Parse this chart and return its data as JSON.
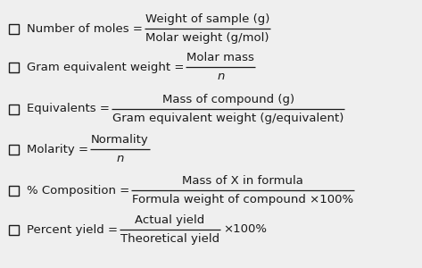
{
  "background_color": "#efefef",
  "text_color": "#1a1a1a",
  "box_color": "#1a1a1a",
  "font_size": 9.5,
  "fig_width": 4.73,
  "fig_height": 3.0,
  "dpi": 100,
  "formulas": [
    {
      "row": 0,
      "label": "Number of moles =",
      "numerator": "Weight of sample (g)",
      "denominator": "Molar weight (g/mol)",
      "denom_italic": false,
      "num_italic": false,
      "suffix": null
    },
    {
      "row": 1,
      "label": "Gram equivalent weight =",
      "numerator": "Molar mass",
      "denominator": "n",
      "denom_italic": true,
      "num_italic": false,
      "suffix": null
    },
    {
      "row": 2,
      "label": "Equivalents =",
      "numerator": "Mass of compound (g)",
      "denominator": "Gram equivalent weight (g/equivalent)",
      "denom_italic": false,
      "num_italic": false,
      "suffix": null
    },
    {
      "row": 3,
      "label": "Molarity =",
      "numerator": "Normality",
      "denominator": "n",
      "denom_italic": true,
      "num_italic": false,
      "suffix": null
    },
    {
      "row": 4,
      "label": "% Composition =",
      "numerator": "Mass of X in formula",
      "denominator": "Formula weight of compound ×100%",
      "denom_italic": false,
      "num_italic": false,
      "suffix": null
    },
    {
      "row": 5,
      "label": "Percent yield =",
      "numerator": "Actual yield",
      "denominator": "Theoretical yield",
      "denom_italic": false,
      "num_italic": false,
      "suffix": "×100%"
    }
  ]
}
